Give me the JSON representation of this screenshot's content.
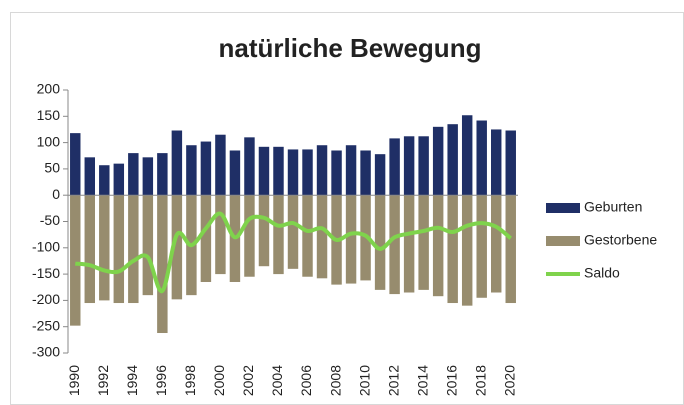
{
  "chart_data": {
    "type": "bar",
    "title": "natürliche Bewegung",
    "categories": [
      "1990",
      null,
      "1992",
      null,
      "1994",
      null,
      "1996",
      null,
      "1998",
      null,
      "2000",
      null,
      "2002",
      null,
      "2004",
      null,
      "2006",
      null,
      "2008",
      null,
      "2010",
      null,
      "2012",
      null,
      "2014",
      null,
      "2016",
      null,
      "2018",
      null,
      "2020"
    ],
    "series": [
      {
        "name": "Geburten",
        "color": "#1f2f66",
        "values": [
          118,
          72,
          57,
          60,
          80,
          72,
          80,
          123,
          95,
          102,
          115,
          85,
          110,
          92,
          92,
          87,
          87,
          95,
          85,
          95,
          85,
          78,
          108,
          112,
          112,
          130,
          135,
          152,
          142,
          125,
          123
        ]
      },
      {
        "name": "Gestorbene",
        "color": "#978c6e",
        "values": [
          -248,
          -205,
          -200,
          -205,
          -205,
          -190,
          -262,
          -198,
          -190,
          -165,
          -150,
          -165,
          -155,
          -135,
          -150,
          -140,
          -155,
          -158,
          -170,
          -168,
          -162,
          -180,
          -188,
          -185,
          -180,
          -192,
          -205,
          -210,
          -195,
          -185,
          -205
        ]
      },
      {
        "name": "Saldo",
        "color": "#7fd34c",
        "type": "line",
        "values": [
          -130,
          -133,
          -143,
          -145,
          -125,
          -118,
          -182,
          -75,
          -95,
          -63,
          -35,
          -80,
          -45,
          -43,
          -58,
          -53,
          -68,
          -63,
          -85,
          -73,
          -77,
          -102,
          -80,
          -73,
          -68,
          -62,
          -70,
          -58,
          -53,
          -60,
          -82
        ]
      }
    ],
    "ylim": [
      -300,
      200
    ],
    "yticks": [
      -300,
      -250,
      -200,
      -150,
      -100,
      -50,
      0,
      50,
      100,
      150,
      200
    ],
    "grid": false,
    "legend": "right"
  }
}
